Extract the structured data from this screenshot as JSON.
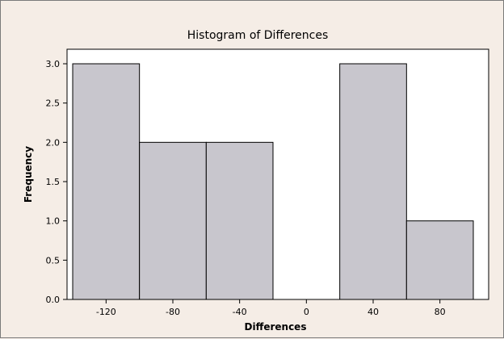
{
  "chart_data": {
    "type": "bar",
    "title": "Histogram of Differences",
    "xlabel": "Differences",
    "ylabel": "Frequency",
    "bin_width": 40,
    "bins": [
      {
        "start": -140,
        "end": -100,
        "count": 3
      },
      {
        "start": -100,
        "end": -60,
        "count": 2
      },
      {
        "start": -60,
        "end": -20,
        "count": 2
      },
      {
        "start": -20,
        "end": 20,
        "count": 0
      },
      {
        "start": 20,
        "end": 60,
        "count": 3
      },
      {
        "start": 60,
        "end": 100,
        "count": 1
      }
    ],
    "xlim": [
      -140,
      100
    ],
    "ylim": [
      0,
      3
    ],
    "x_ticks": [
      -120,
      -80,
      -40,
      0,
      40,
      80
    ],
    "x_tick_labels": [
      "-120",
      "-80",
      "-40",
      "0",
      "40",
      "80"
    ],
    "y_ticks": [
      0,
      0.5,
      1,
      1.5,
      2,
      2.5,
      3
    ],
    "y_tick_labels": [
      "0.0",
      "0.5",
      "1.0",
      "1.5",
      "2.0",
      "2.5",
      "3.0"
    ],
    "grid": false,
    "legend": "none",
    "colors": {
      "bar_fill": "#c8c6cd",
      "bar_stroke": "#000000",
      "plot_background": "#ffffff",
      "outer_background": "#f5ede6"
    }
  }
}
